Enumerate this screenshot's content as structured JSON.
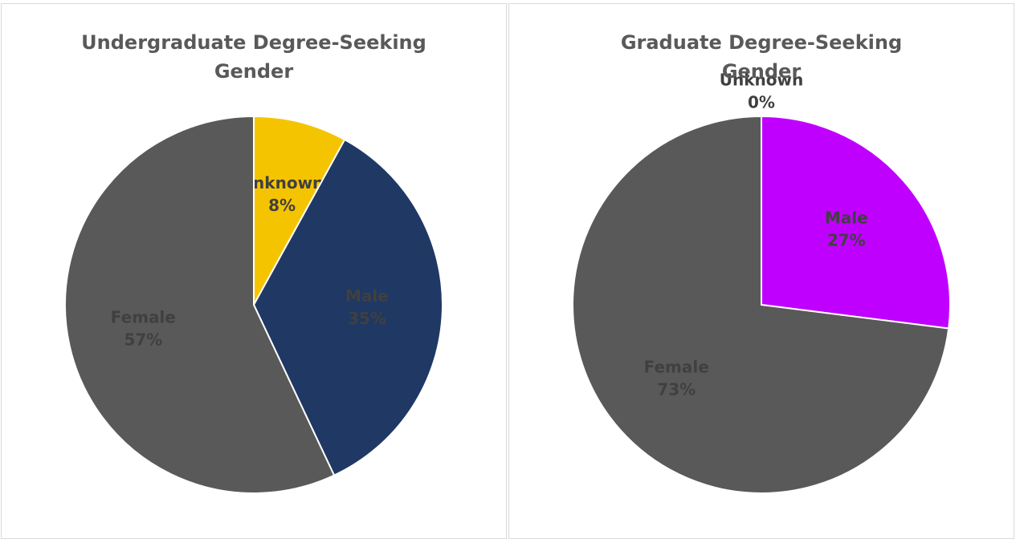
{
  "chart_data": [
    {
      "type": "pie",
      "title": "Undergraduate Degree-Seeking Gender",
      "categories": [
        "Unknown",
        "Male",
        "Female"
      ],
      "values": [
        8,
        35,
        57
      ],
      "value_labels": [
        "8%",
        "35%",
        "57%"
      ],
      "colors": [
        "#f5c400",
        "#1f3864",
        "#595959"
      ]
    },
    {
      "type": "pie",
      "title": "Graduate Degree-Seeking Gender",
      "categories": [
        "Unknown",
        "Male",
        "Female"
      ],
      "values": [
        0,
        27,
        73
      ],
      "value_labels": [
        "0%",
        "27%",
        "73%"
      ],
      "colors": [
        "#375623",
        "#c000ff",
        "#595959"
      ]
    }
  ]
}
